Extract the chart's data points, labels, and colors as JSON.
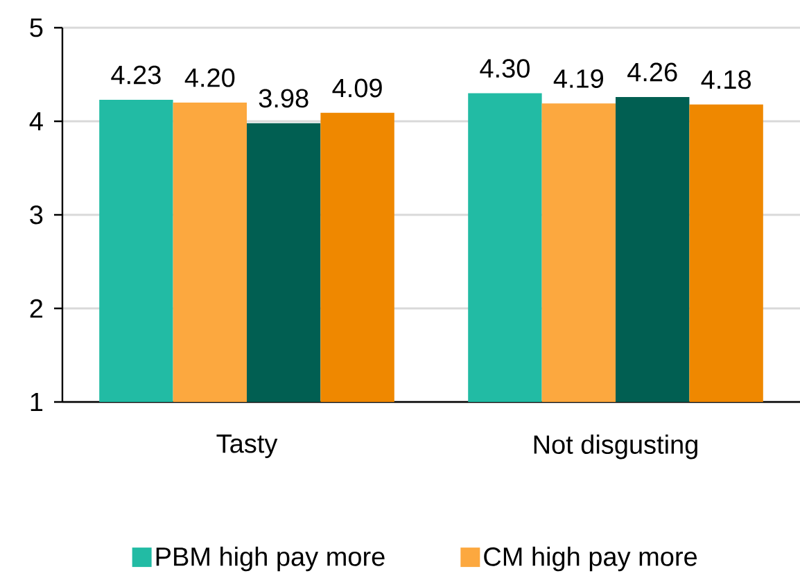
{
  "chart_data": {
    "type": "bar",
    "categories": [
      "Tasty",
      "Not disgusting"
    ],
    "series": [
      {
        "name": "PBM high pay more",
        "color": "#22bba4",
        "values": [
          4.23,
          4.3
        ],
        "value_labels": [
          "4.23",
          "4.30"
        ]
      },
      {
        "name": "CM high pay more",
        "color": "#fca83f",
        "values": [
          4.2,
          4.19
        ],
        "value_labels": [
          "4.20",
          "4.19"
        ]
      },
      {
        "color": "#015f52",
        "values": [
          3.98,
          4.26
        ],
        "value_labels": [
          "3.98",
          "4.26"
        ]
      },
      {
        "color": "#ef8800",
        "values": [
          4.09,
          4.18
        ],
        "value_labels": [
          "4.09",
          "4.18"
        ]
      }
    ],
    "ylim": [
      1,
      5
    ],
    "yticks": [
      1,
      2,
      3,
      4,
      5
    ],
    "grid": "y",
    "legend": "bottom"
  }
}
